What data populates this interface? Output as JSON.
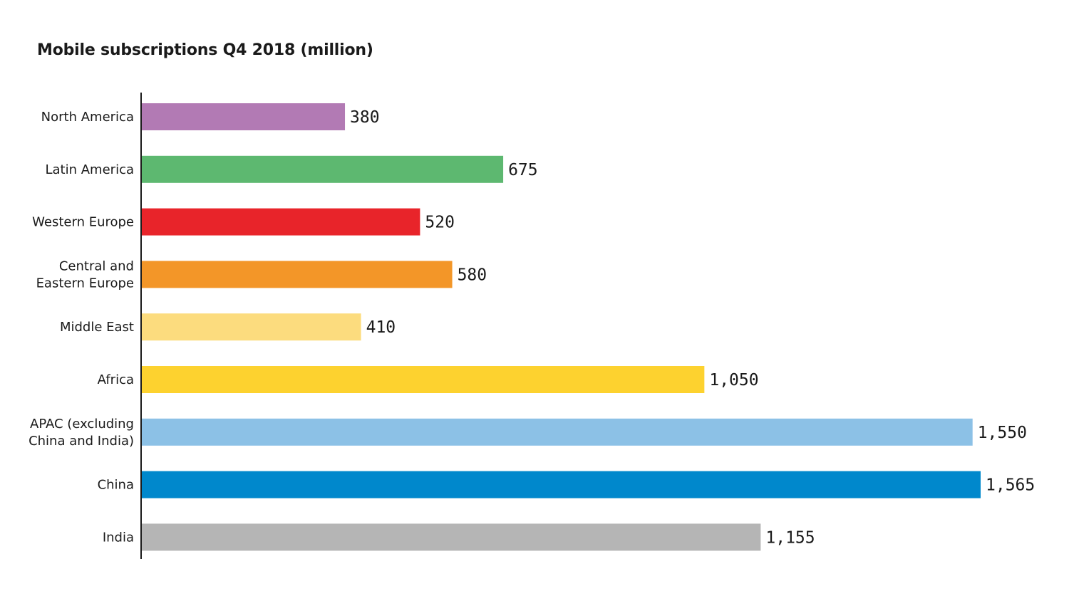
{
  "chart_data": {
    "type": "bar",
    "orientation": "horizontal",
    "title": "Mobile subscriptions Q4 2018 (million)",
    "xlabel": "",
    "ylabel": "",
    "grid": false,
    "xlim": [
      0,
      1600
    ],
    "categories": [
      [
        "North America"
      ],
      [
        "Latin America"
      ],
      [
        "Western Europe"
      ],
      [
        "Central and",
        "Eastern Europe"
      ],
      [
        "Middle East"
      ],
      [
        "Africa"
      ],
      [
        "APAC (excluding",
        "China and India)"
      ],
      [
        "China"
      ],
      [
        "India"
      ]
    ],
    "values": [
      380,
      675,
      520,
      580,
      410,
      1050,
      1550,
      1565,
      1155
    ],
    "value_labels": [
      "380",
      "675",
      "520",
      "580",
      "410",
      "1,050",
      "1,550",
      "1,565",
      "1,155"
    ],
    "colors": [
      "#b27ab4",
      "#5db870",
      "#e8242a",
      "#f39628",
      "#fcdc7e",
      "#fdd22f",
      "#8cc1e6",
      "#0088cc",
      "#b5b5b5"
    ]
  }
}
